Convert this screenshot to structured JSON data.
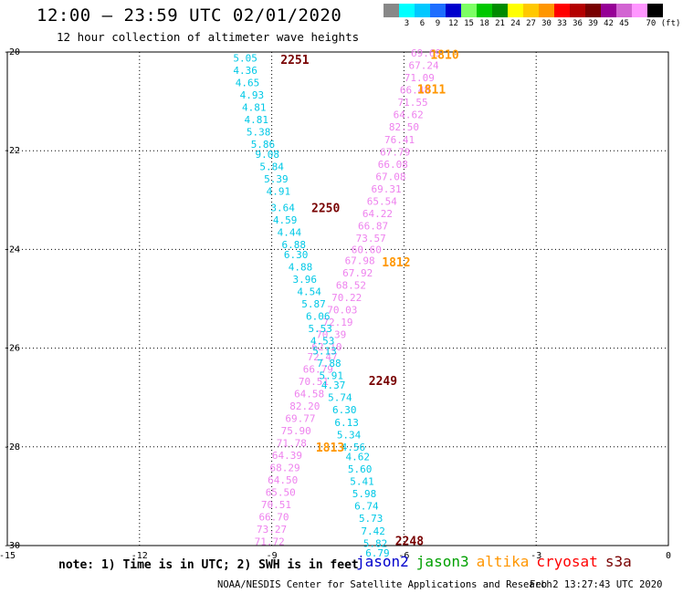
{
  "header": {
    "title": "12:00 – 23:59 UTC 02/01/2020",
    "subtitle": "12 hour collection of altimeter wave heights"
  },
  "scale": {
    "colors": [
      "#888888",
      "#00ffff",
      "#00c8ff",
      "#1e6eff",
      "#0000cd",
      "#7cff64",
      "#00c800",
      "#008c00",
      "#ffff00",
      "#ffc800",
      "#ff9600",
      "#ff0000",
      "#b40000",
      "#780000",
      "#960096",
      "#d264d2",
      "#ff96ff",
      "#000000"
    ],
    "labels": [
      "3",
      "6",
      "9",
      "12",
      "15",
      "18",
      "21",
      "24",
      "27",
      "30",
      "33",
      "36",
      "39",
      "42",
      "45",
      "70 (ft)"
    ]
  },
  "footer": {
    "note": "note: 1) Time is in UTC; 2) SWH is in feet",
    "legend": [
      {
        "label": "jason2",
        "color": "#0000cd"
      },
      {
        "label": "jason3",
        "color": "#00a000"
      },
      {
        "label": "altika",
        "color": "#ff9600"
      },
      {
        "label": "cryosat",
        "color": "#ff0000"
      },
      {
        "label": "s3a",
        "color": "#780000"
      }
    ],
    "credit": "NOAA/NESDIS Center for Satellite Applications and Research",
    "timestamp": "Feb  2 13:27:43 UTC 2020"
  },
  "chart_data": {
    "type": "scatter",
    "xlim": [
      -15,
      0
    ],
    "ylim": [
      -30,
      -20
    ],
    "x_ticks": [
      "-15",
      "-12",
      "-9",
      "-6",
      "-3",
      "0"
    ],
    "y_ticks": [
      "-20",
      "-22",
      "-24",
      "-26",
      "-28",
      "-30"
    ],
    "grid": true,
    "pass_labels": [
      {
        "text": "1810",
        "x": -5.4,
        "y": -20.05,
        "color": "#ff9600"
      },
      {
        "text": "1811",
        "x": -5.7,
        "y": -20.75,
        "color": "#ff9600"
      },
      {
        "text": "1812",
        "x": -6.5,
        "y": -24.25,
        "color": "#ff9600"
      },
      {
        "text": "1813",
        "x": -8.0,
        "y": -28.0,
        "color": "#ff9600"
      },
      {
        "text": "2251",
        "x": -8.8,
        "y": -20.15,
        "color": "#780000"
      },
      {
        "text": "2250",
        "x": -8.1,
        "y": -23.15,
        "color": "#780000"
      },
      {
        "text": "2249",
        "x": -6.8,
        "y": -26.65,
        "color": "#780000"
      },
      {
        "text": "2248",
        "x": -6.2,
        "y": -29.9,
        "color": "#780000"
      }
    ],
    "series": [
      {
        "color": "#ee82ee",
        "points": [
          [
            "69.69",
            -5.5,
            -20.02
          ],
          [
            "67.24",
            -5.55,
            -20.27
          ],
          [
            "71.09",
            -5.65,
            -20.52
          ],
          [
            "66.48",
            -5.75,
            -20.77
          ],
          [
            "71.55",
            -5.8,
            -21.02
          ],
          [
            "64.62",
            -5.9,
            -21.27
          ],
          [
            "82.50",
            -6.0,
            -21.52
          ],
          [
            "76.41",
            -6.1,
            -21.77
          ],
          [
            "67.79",
            -6.2,
            -22.02
          ],
          [
            "66.08",
            -6.25,
            -22.27
          ],
          [
            "67.08",
            -6.3,
            -22.52
          ],
          [
            "69.31",
            -6.4,
            -22.77
          ],
          [
            "65.54",
            -6.5,
            -23.02
          ],
          [
            "64.22",
            -6.6,
            -23.27
          ],
          [
            "66.87",
            -6.7,
            -23.52
          ],
          [
            "73.57",
            -6.75,
            -23.77
          ],
          [
            "60.60",
            -6.85,
            -24.0
          ],
          [
            "67.98",
            -7.0,
            -24.22
          ],
          [
            "67.92",
            -7.05,
            -24.47
          ],
          [
            "68.52",
            -7.2,
            -24.72
          ],
          [
            "70.22",
            -7.3,
            -24.97
          ],
          [
            "70.03",
            -7.4,
            -25.22
          ],
          [
            "72.19",
            -7.5,
            -25.47
          ],
          [
            "70.39",
            -7.65,
            -25.72
          ],
          [
            "62.10",
            -7.75,
            -25.97
          ],
          [
            "72.47",
            -7.85,
            -26.17
          ],
          [
            "66.79",
            -7.95,
            -26.42
          ],
          [
            "70.51",
            -8.05,
            -26.67
          ],
          [
            "64.58",
            -8.15,
            -26.92
          ],
          [
            "82.20",
            -8.25,
            -27.17
          ],
          [
            "69.77",
            -8.35,
            -27.42
          ],
          [
            "75.90",
            -8.45,
            -27.67
          ],
          [
            "71.78",
            -8.55,
            -27.92
          ],
          [
            "64.39",
            -8.65,
            -28.17
          ],
          [
            "68.29",
            -8.7,
            -28.42
          ],
          [
            "64.50",
            -8.75,
            -28.67
          ],
          [
            "65.50",
            -8.8,
            -28.92
          ],
          [
            "70.51",
            -8.9,
            -29.17
          ],
          [
            "66.70",
            -8.95,
            -29.42
          ],
          [
            "73.27",
            -9.0,
            -29.67
          ],
          [
            "71.72",
            -9.05,
            -29.92
          ]
        ]
      },
      {
        "color": "#00c8e6",
        "points": [
          [
            "5.05",
            -9.6,
            -20.12
          ],
          [
            "4.36",
            -9.6,
            -20.37
          ],
          [
            "4.65",
            -9.55,
            -20.62
          ],
          [
            "4.93",
            -9.45,
            -20.87
          ],
          [
            "4.81",
            -9.4,
            -21.12
          ],
          [
            "4.81",
            -9.35,
            -21.37
          ],
          [
            "5.38",
            -9.3,
            -21.62
          ],
          [
            "5.86",
            -9.2,
            -21.87
          ],
          [
            "9.08",
            -9.1,
            -22.07
          ],
          [
            "5.84",
            -9.0,
            -22.32
          ],
          [
            "5.39",
            -8.9,
            -22.57
          ],
          [
            "4.91",
            -8.85,
            -22.82
          ],
          [
            "3.64",
            -8.75,
            -23.15
          ],
          [
            "4.59",
            -8.7,
            -23.4
          ],
          [
            "4.44",
            -8.6,
            -23.65
          ],
          [
            "6.88",
            -8.5,
            -23.9
          ],
          [
            "6.30",
            -8.45,
            -24.1
          ],
          [
            "4.88",
            -8.35,
            -24.35
          ],
          [
            "3.96",
            -8.25,
            -24.6
          ],
          [
            "4.54",
            -8.15,
            -24.85
          ],
          [
            "5.87",
            -8.05,
            -25.1
          ],
          [
            "6.06",
            -7.95,
            -25.35
          ],
          [
            "5.53",
            -7.9,
            -25.6
          ],
          [
            "4.53",
            -7.85,
            -25.85
          ],
          [
            "5.13",
            -7.8,
            -26.05
          ],
          [
            "7.88",
            -7.7,
            -26.3
          ],
          [
            "5.91",
            -7.65,
            -26.55
          ],
          [
            "4.37",
            -7.6,
            -26.75
          ],
          [
            "5.74",
            -7.45,
            -27.0
          ],
          [
            "6.30",
            -7.35,
            -27.25
          ],
          [
            "6.13",
            -7.3,
            -27.5
          ],
          [
            "5.34",
            -7.25,
            -27.75
          ],
          [
            "4.56",
            -7.15,
            -28.0
          ],
          [
            "4.62",
            -7.05,
            -28.2
          ],
          [
            "5.60",
            -7.0,
            -28.45
          ],
          [
            "5.41",
            -6.95,
            -28.7
          ],
          [
            "5.98",
            -6.9,
            -28.95
          ],
          [
            "6.74",
            -6.85,
            -29.2
          ],
          [
            "5.73",
            -6.75,
            -29.45
          ],
          [
            "7.42",
            -6.7,
            -29.7
          ],
          [
            "5.82",
            -6.65,
            -29.95
          ],
          [
            "6.79",
            -6.6,
            -30.15
          ]
        ]
      }
    ]
  }
}
